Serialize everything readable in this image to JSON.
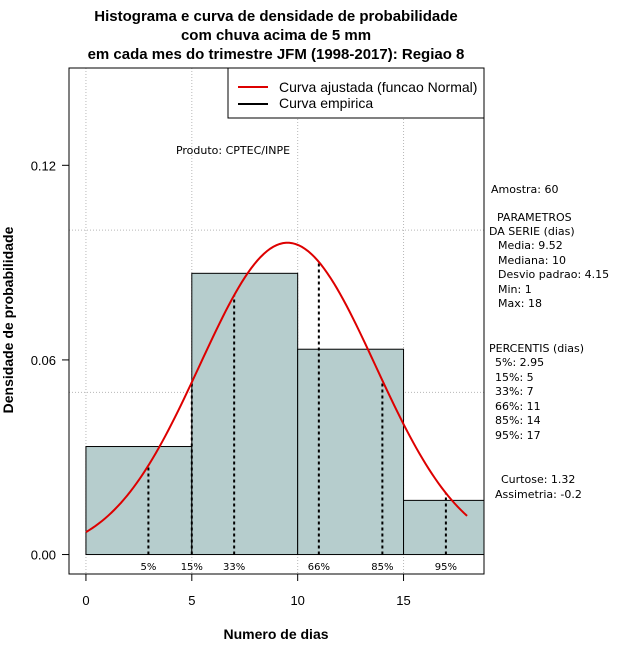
{
  "chart_data": {
    "type": "histogram",
    "title_lines": [
      "Histograma e curva de densidade de probabilidade",
      "com chuva acima de 5 mm",
      "em cada mes do trimestre JFM (1998-2017): Regiao 8"
    ],
    "xlabel": "Numero de dias",
    "ylabel": "Densidade de probabilidade",
    "xlim": [
      -0.8,
      18.8
    ],
    "ylim": [
      -0.006,
      0.15
    ],
    "x_ticks": [
      0,
      5,
      10,
      15
    ],
    "y_ticks": [
      0.0,
      0.06,
      0.12
    ],
    "y_tick_labels": [
      "0.00",
      "0.06",
      "0.12"
    ],
    "grid_x": [
      0,
      5,
      10,
      15
    ],
    "grid_y": [
      0.05,
      0.1
    ],
    "bins": [
      {
        "x0": 0,
        "x1": 5,
        "density": 0.0333
      },
      {
        "x0": 5,
        "x1": 10,
        "density": 0.0867
      },
      {
        "x0": 10,
        "x1": 15,
        "density": 0.0633
      },
      {
        "x0": 15,
        "x1": 18.8,
        "density": 0.0167
      }
    ],
    "bar_fill": "#b6cdcd",
    "normal_fit": {
      "mean": 9.52,
      "sd": 4.15,
      "x_min": 0,
      "x_max": 18,
      "color": "#dd0000"
    },
    "percentiles": [
      {
        "label": "5%",
        "x": 2.95
      },
      {
        "label": "15%",
        "x": 5
      },
      {
        "label": "33%",
        "x": 7
      },
      {
        "label": "66%",
        "x": 11
      },
      {
        "label": "85%",
        "x": 14
      },
      {
        "label": "95%",
        "x": 17
      }
    ],
    "legend": {
      "position": "top-right",
      "entries": [
        {
          "label": "Curva ajustada (funcao Normal)",
          "color": "#dd0000"
        },
        {
          "label": "Curva empirica",
          "color": "#000000"
        }
      ]
    },
    "product_label": "Produto: CPTEC/INPE",
    "stats": {
      "sample": "Amostra: 60",
      "params_header_1": "PARAMETROS",
      "params_header_2": "DA SERIE (dias)",
      "params": [
        "Media: 9.52",
        "Mediana: 10",
        "Desvio padrao: 4.15",
        "Min: 1",
        "Max: 18"
      ],
      "percentis_header": "PERCENTIS (dias)",
      "percentis": [
        "5%: 2.95",
        "15%: 5",
        "33%: 7",
        "66%: 11",
        "85%: 14",
        "95%: 17"
      ],
      "curtose": "Curtose: 1.32",
      "assimetria": "Assimetria: -0.2"
    }
  }
}
